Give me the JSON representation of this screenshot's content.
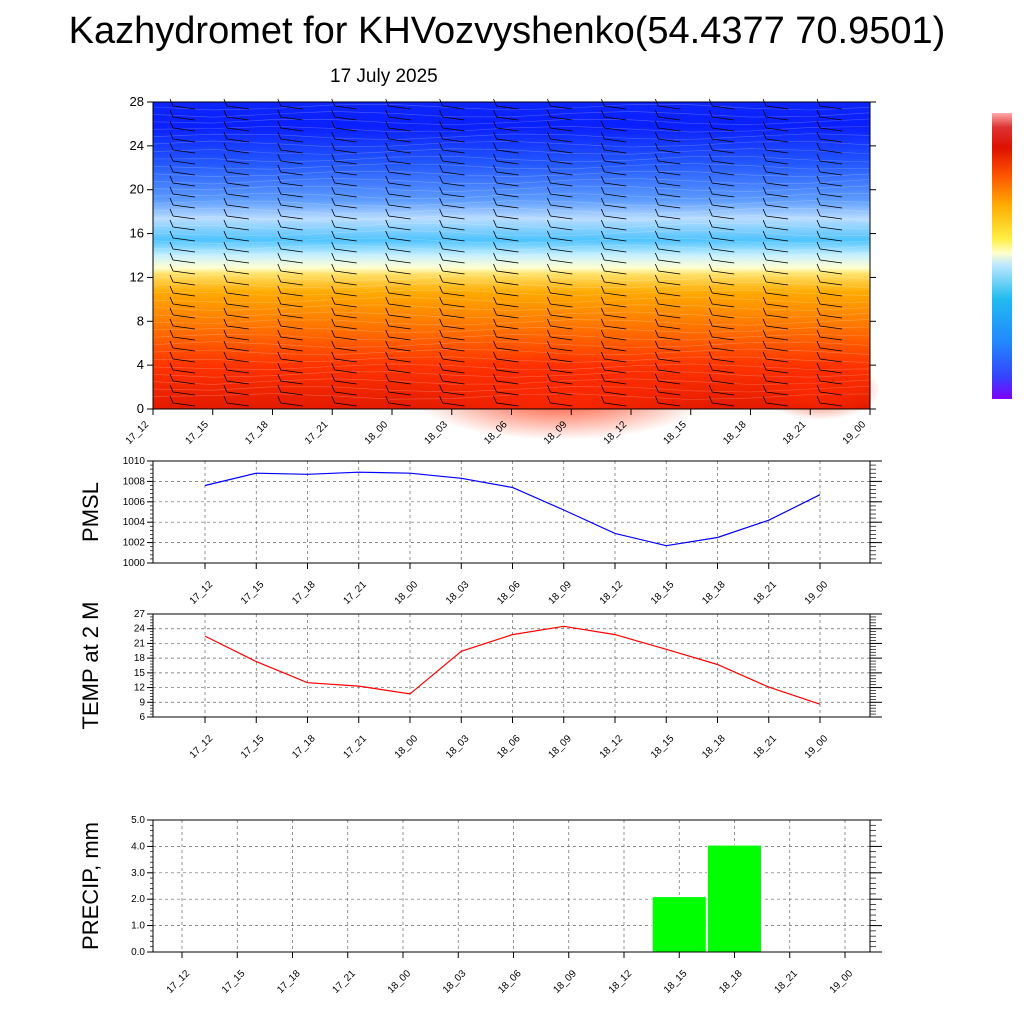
{
  "title": "Kazhydromet for KHVozvyshenko(54.4377 70.9501)",
  "date": "17 July 2025",
  "time_labels": [
    "17_12",
    "17_15",
    "17_18",
    "17_21",
    "18_00",
    "18_03",
    "18_06",
    "18_09",
    "18_12",
    "18_15",
    "18_18",
    "18_21",
    "19_00"
  ],
  "chart_data": [
    {
      "type": "heatmap",
      "title": "",
      "ylabel": "",
      "x": [
        "17_12",
        "17_15",
        "17_18",
        "17_21",
        "18_00",
        "18_03",
        "18_06",
        "18_09",
        "18_12",
        "18_15",
        "18_18",
        "18_21",
        "19_00"
      ],
      "ylim": [
        0,
        28
      ],
      "yticks": [
        0,
        4,
        8,
        12,
        16,
        20,
        24,
        28
      ],
      "colormap": [
        "#7f00ff",
        "#3344ff",
        "#2288ff",
        "#22bbee",
        "#99ddff",
        "#ffffcc",
        "#ffee44",
        "#ffaa00",
        "#ff6600",
        "#ee2200",
        "#cc1100",
        "#ff8888"
      ],
      "overlay": "wind barbs"
    },
    {
      "type": "line",
      "ylabel": "PMSL",
      "x": [
        "17_12",
        "17_15",
        "17_18",
        "17_21",
        "18_00",
        "18_03",
        "18_06",
        "18_09",
        "18_12",
        "18_15",
        "18_18",
        "18_21",
        "19_00"
      ],
      "values": [
        1007.6,
        1008.8,
        1008.7,
        1008.9,
        1008.8,
        1008.3,
        1007.4,
        1005.2,
        1002.9,
        1001.7,
        1002.5,
        1004.2,
        1006.7
      ],
      "ylim": [
        1000,
        1010
      ],
      "yticks": [
        1000,
        1002,
        1004,
        1006,
        1008,
        1010
      ],
      "color": "#0000ff",
      "grid": true
    },
    {
      "type": "line",
      "ylabel": "TEMP at 2 M",
      "x": [
        "17_12",
        "17_15",
        "17_18",
        "17_21",
        "18_00",
        "18_03",
        "18_06",
        "18_09",
        "18_12",
        "18_15",
        "18_18",
        "18_21",
        "19_00"
      ],
      "values": [
        22.5,
        17.3,
        13.0,
        12.3,
        10.7,
        19.4,
        22.8,
        24.5,
        22.8,
        19.8,
        16.7,
        12.1,
        8.6
      ],
      "ylim": [
        6,
        27
      ],
      "yticks": [
        6,
        9,
        12,
        15,
        18,
        21,
        24,
        27
      ],
      "color": "#ff0000",
      "grid": true
    },
    {
      "type": "bar",
      "ylabel": "PRECIP, mm",
      "categories": [
        "17_12",
        "17_15",
        "17_18",
        "17_21",
        "18_00",
        "18_03",
        "18_06",
        "18_09",
        "18_12",
        "18_15",
        "18_18",
        "18_21",
        "19_00"
      ],
      "values": [
        0,
        0,
        0,
        0,
        0,
        0,
        0,
        0,
        0,
        2.1,
        4.05,
        0,
        0
      ],
      "ylim": [
        0,
        5
      ],
      "yticks": [
        "0.0",
        "1.0",
        "2.0",
        "3.0",
        "4.0",
        "5.0"
      ],
      "color": "#00ff00",
      "grid": true
    }
  ]
}
